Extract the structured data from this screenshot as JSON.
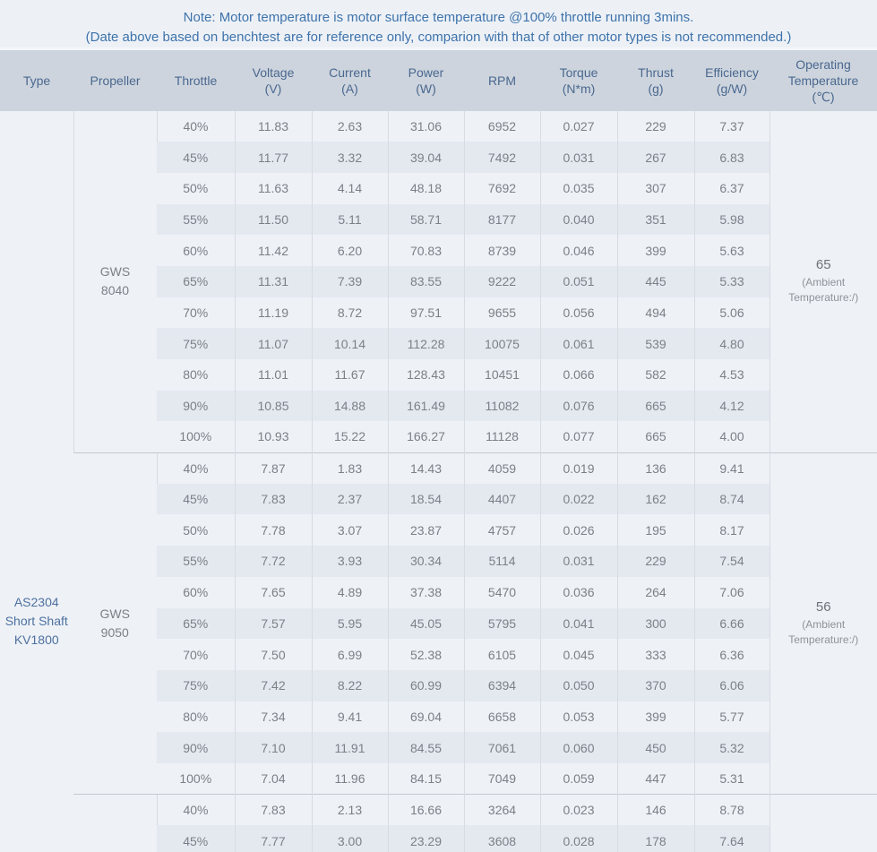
{
  "note": {
    "line1": "Note: Motor temperature is motor surface temperature @100% throttle running 3mins.",
    "line2": "(Date above based on benchtest are for reference only, comparion with that of other motor types is not recommended.)"
  },
  "table": {
    "type": "AS2304\nShort Shaft\nKV1800",
    "columns": [
      {
        "id": "type",
        "label": "Type"
      },
      {
        "id": "propeller",
        "label": "Propeller"
      },
      {
        "id": "throttle",
        "label": "Throttle"
      },
      {
        "id": "voltage",
        "label": "Voltage\n(V)"
      },
      {
        "id": "current",
        "label": "Current\n(A)"
      },
      {
        "id": "power",
        "label": "Power\n(W)"
      },
      {
        "id": "rpm",
        "label": "RPM"
      },
      {
        "id": "torque",
        "label": "Torque\n(N*m)"
      },
      {
        "id": "thrust",
        "label": "Thrust\n(g)"
      },
      {
        "id": "efficiency",
        "label": "Efficiency\n(g/W)"
      },
      {
        "id": "op-temp",
        "label": "Operating\nTemperature\n(℃)"
      }
    ],
    "sections": [
      {
        "propeller": "GWS\n8040",
        "temperature": {
          "value": "65",
          "note": "(Ambient\nTemperature:/)"
        },
        "rows": [
          [
            "40%",
            "11.83",
            "2.63",
            "31.06",
            "6952",
            "0.027",
            "229",
            "7.37"
          ],
          [
            "45%",
            "11.77",
            "3.32",
            "39.04",
            "7492",
            "0.031",
            "267",
            "6.83"
          ],
          [
            "50%",
            "11.63",
            "4.14",
            "48.18",
            "7692",
            "0.035",
            "307",
            "6.37"
          ],
          [
            "55%",
            "11.50",
            "5.11",
            "58.71",
            "8177",
            "0.040",
            "351",
            "5.98"
          ],
          [
            "60%",
            "11.42",
            "6.20",
            "70.83",
            "8739",
            "0.046",
            "399",
            "5.63"
          ],
          [
            "65%",
            "11.31",
            "7.39",
            "83.55",
            "9222",
            "0.051",
            "445",
            "5.33"
          ],
          [
            "70%",
            "11.19",
            "8.72",
            "97.51",
            "9655",
            "0.056",
            "494",
            "5.06"
          ],
          [
            "75%",
            "11.07",
            "10.14",
            "112.28",
            "10075",
            "0.061",
            "539",
            "4.80"
          ],
          [
            "80%",
            "11.01",
            "11.67",
            "128.43",
            "10451",
            "0.066",
            "582",
            "4.53"
          ],
          [
            "90%",
            "10.85",
            "14.88",
            "161.49",
            "11082",
            "0.076",
            "665",
            "4.12"
          ],
          [
            "100%",
            "10.93",
            "15.22",
            "166.27",
            "11128",
            "0.077",
            "665",
            "4.00"
          ]
        ]
      },
      {
        "propeller": "GWS\n9050",
        "temperature": {
          "value": "56",
          "note": "(Ambient\nTemperature:/)"
        },
        "rows": [
          [
            "40%",
            "7.87",
            "1.83",
            "14.43",
            "4059",
            "0.019",
            "136",
            "9.41"
          ],
          [
            "45%",
            "7.83",
            "2.37",
            "18.54",
            "4407",
            "0.022",
            "162",
            "8.74"
          ],
          [
            "50%",
            "7.78",
            "3.07",
            "23.87",
            "4757",
            "0.026",
            "195",
            "8.17"
          ],
          [
            "55%",
            "7.72",
            "3.93",
            "30.34",
            "5114",
            "0.031",
            "229",
            "7.54"
          ],
          [
            "60%",
            "7.65",
            "4.89",
            "37.38",
            "5470",
            "0.036",
            "264",
            "7.06"
          ],
          [
            "65%",
            "7.57",
            "5.95",
            "45.05",
            "5795",
            "0.041",
            "300",
            "6.66"
          ],
          [
            "70%",
            "7.50",
            "6.99",
            "52.38",
            "6105",
            "0.045",
            "333",
            "6.36"
          ],
          [
            "75%",
            "7.42",
            "8.22",
            "60.99",
            "6394",
            "0.050",
            "370",
            "6.06"
          ],
          [
            "80%",
            "7.34",
            "9.41",
            "69.04",
            "6658",
            "0.053",
            "399",
            "5.77"
          ],
          [
            "90%",
            "7.10",
            "11.91",
            "84.55",
            "7061",
            "0.060",
            "450",
            "5.32"
          ],
          [
            "100%",
            "7.04",
            "11.96",
            "84.15",
            "7049",
            "0.059",
            "447",
            "5.31"
          ]
        ]
      },
      {
        "propeller": "",
        "temperature": {
          "value": "",
          "note": ""
        },
        "rows": [
          [
            "40%",
            "7.83",
            "2.13",
            "16.66",
            "3264",
            "0.023",
            "146",
            "8.78"
          ],
          [
            "45%",
            "7.77",
            "3.00",
            "23.29",
            "3608",
            "0.028",
            "178",
            "7.64"
          ]
        ]
      }
    ]
  }
}
